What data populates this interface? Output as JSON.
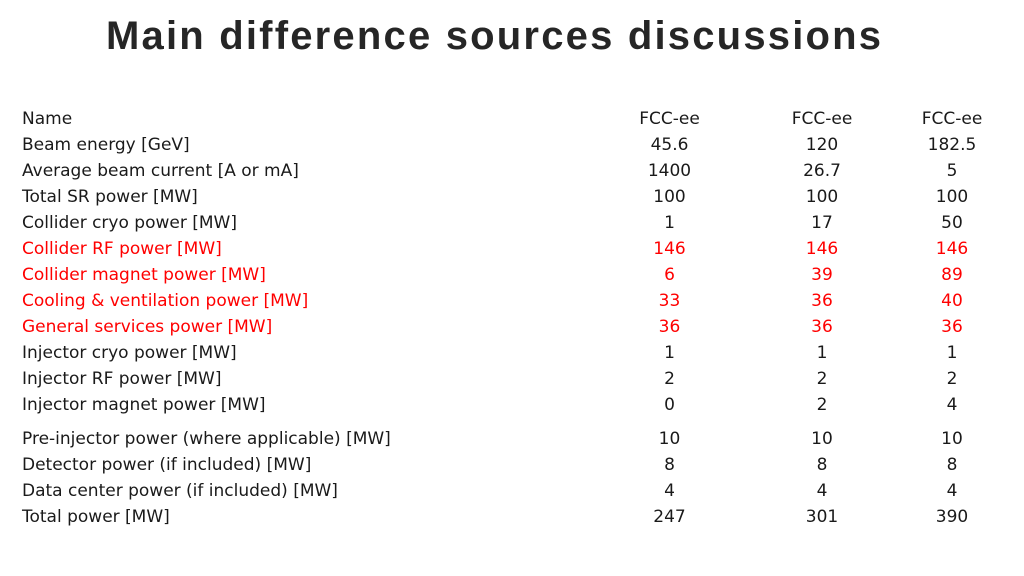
{
  "title": "Main difference sources discussions",
  "accent_color": "#ff0000",
  "table": {
    "header": {
      "name": "Name",
      "columns": [
        "FCC-ee",
        "FCC-ee",
        "FCC-ee"
      ]
    },
    "rows": [
      {
        "name": "Beam energy [GeV]",
        "values": [
          "45.6",
          "120",
          "182.5"
        ],
        "highlight": false
      },
      {
        "name": "Average beam current [A or mA]",
        "values": [
          "1400",
          "26.7",
          "5"
        ],
        "highlight": false
      },
      {
        "name": "Total SR power [MW]",
        "values": [
          "100",
          "100",
          "100"
        ],
        "highlight": false
      },
      {
        "name": "Collider cryo power [MW]",
        "values": [
          "1",
          "17",
          "50"
        ],
        "highlight": false
      },
      {
        "name": "Collider RF power [MW]",
        "values": [
          "146",
          "146",
          "146"
        ],
        "highlight": true
      },
      {
        "name": "Collider magnet power [MW]",
        "values": [
          "6",
          "39",
          "89"
        ],
        "highlight": true
      },
      {
        "name": "Cooling & ventilation power [MW]",
        "values": [
          "33",
          "36",
          "40"
        ],
        "highlight": true
      },
      {
        "name": "General services power [MW]",
        "values": [
          "36",
          "36",
          "36"
        ],
        "highlight": true
      },
      {
        "name": "Injector cryo power [MW]",
        "values": [
          "1",
          "1",
          "1"
        ],
        "highlight": false
      },
      {
        "name": "Injector RF power [MW]",
        "values": [
          "2",
          "2",
          "2"
        ],
        "highlight": false
      },
      {
        "name": "Injector magnet power [MW]",
        "values": [
          "0",
          "2",
          "4"
        ],
        "highlight": false
      },
      {
        "name": "Pre-injector power (where applicable)  [MW]",
        "values": [
          "10",
          "10",
          "10"
        ],
        "highlight": false
      },
      {
        "name": "Detector power (if included) [MW]",
        "values": [
          "8",
          "8",
          "8"
        ],
        "highlight": false
      },
      {
        "name": "Data center power (if included) [MW]",
        "values": [
          "4",
          "4",
          "4"
        ],
        "highlight": false
      },
      {
        "name": "Total power [MW]",
        "values": [
          "247",
          "301",
          "390"
        ],
        "highlight": false
      }
    ]
  }
}
